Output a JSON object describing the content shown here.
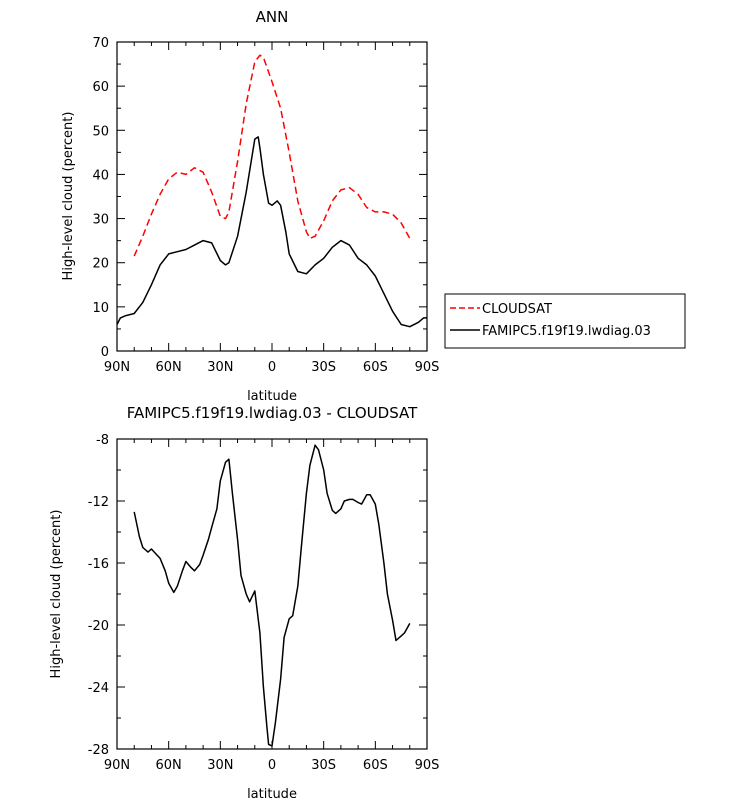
{
  "chart_data": [
    {
      "type": "line",
      "title": "ANN",
      "xlabel": "latitude",
      "ylabel": "High-level cloud (percent)",
      "xlim": [
        90,
        -90
      ],
      "ylim": [
        0,
        70
      ],
      "x_ticks": [
        90,
        60,
        30,
        0,
        -30,
        -60,
        -90
      ],
      "x_tick_labels": [
        "90N",
        "60N",
        "30N",
        "0",
        "30S",
        "60S",
        "90S"
      ],
      "y_ticks": [
        0,
        10,
        20,
        30,
        40,
        50,
        60,
        70
      ],
      "y_tick_labels": [
        "0",
        "10",
        "20",
        "30",
        "40",
        "50",
        "60",
        "70"
      ],
      "grid": false,
      "legend_position": "right",
      "series": [
        {
          "name": "CLOUDSAT",
          "color": "#ff0000",
          "dash": "dashed",
          "x": [
            80,
            75,
            70,
            65,
            60,
            55,
            50,
            45,
            40,
            35,
            30,
            27,
            25,
            20,
            15,
            10,
            7,
            5,
            0,
            -5,
            -10,
            -15,
            -20,
            -22,
            -25,
            -30,
            -35,
            -40,
            -45,
            -50,
            -55,
            -60,
            -65,
            -70,
            -75,
            -80
          ],
          "y": [
            21.5,
            26,
            31,
            35.5,
            39,
            40.5,
            40,
            41.5,
            40.5,
            36,
            30.5,
            30,
            31.5,
            43,
            56,
            65.5,
            67,
            66.5,
            61,
            55,
            45,
            34,
            27,
            25.5,
            26,
            29.5,
            34,
            36.5,
            37,
            35.5,
            32.5,
            31.5,
            31.5,
            31,
            29,
            25.5
          ]
        },
        {
          "name": "FAMIPC5.f19f19.lwdiag.03",
          "color": "#000000",
          "dash": "solid",
          "x": [
            90,
            88,
            85,
            80,
            75,
            70,
            65,
            60,
            55,
            50,
            45,
            40,
            35,
            30,
            27,
            25,
            20,
            15,
            10,
            8,
            7,
            5,
            2,
            0,
            -3,
            -5,
            -8,
            -10,
            -15,
            -20,
            -25,
            -30,
            -35,
            -40,
            -45,
            -50,
            -55,
            -60,
            -65,
            -70,
            -75,
            -80,
            -85,
            -88,
            -90
          ],
          "y": [
            6,
            7.5,
            8,
            8.5,
            11,
            15,
            19.5,
            22,
            22.5,
            23,
            24,
            25,
            24.5,
            20.5,
            19.5,
            20,
            26,
            36,
            48,
            48.5,
            46,
            40,
            33.5,
            33,
            34,
            33,
            27,
            22,
            18,
            17.5,
            19.5,
            21,
            23.5,
            25,
            24,
            21,
            19.5,
            17,
            13,
            9,
            6,
            5.5,
            6.5,
            7.5,
            7.5
          ]
        }
      ]
    },
    {
      "type": "line",
      "title": "FAMIPC5.f19f19.lwdiag.03 - CLOUDSAT",
      "xlabel": "latitude",
      "ylabel": "High-level cloud (percent)",
      "xlim": [
        90,
        -90
      ],
      "ylim": [
        -28,
        -8
      ],
      "x_ticks": [
        90,
        60,
        30,
        0,
        -30,
        -60,
        -90
      ],
      "x_tick_labels": [
        "90N",
        "60N",
        "30N",
        "0",
        "30S",
        "60S",
        "90S"
      ],
      "y_ticks": [
        -28,
        -24,
        -20,
        -16,
        -12,
        -8
      ],
      "y_tick_labels": [
        "-28",
        "-24",
        "-20",
        "-16",
        "-12",
        "-8"
      ],
      "grid": false,
      "series": [
        {
          "color": "#000000",
          "dash": "solid",
          "x": [
            80,
            77,
            75,
            72,
            70,
            65,
            62,
            60,
            57,
            55,
            52,
            50,
            47,
            45,
            42,
            40,
            37,
            35,
            32,
            30,
            27,
            25,
            23,
            20,
            18,
            15,
            13,
            10,
            7,
            5,
            3,
            2,
            0,
            -2,
            -5,
            -7,
            -10,
            -12,
            -15,
            -17,
            -20,
            -22,
            -25,
            -27,
            -30,
            -32,
            -35,
            -37,
            -40,
            -42,
            -45,
            -47,
            -50,
            -52,
            -55,
            -57,
            -60,
            -62,
            -65,
            -67,
            -70,
            -72,
            -75,
            -77,
            -80
          ],
          "y": [
            -12.7,
            -14.3,
            -15,
            -15.3,
            -15.1,
            -15.7,
            -16.5,
            -17.3,
            -17.9,
            -17.5,
            -16.5,
            -15.9,
            -16.3,
            -16.5,
            -16.1,
            -15.5,
            -14.5,
            -13.7,
            -12.5,
            -10.7,
            -9.5,
            -9.3,
            -11.5,
            -14.5,
            -16.8,
            -18,
            -18.5,
            -17.8,
            -20.5,
            -24,
            -26.5,
            -27.7,
            -27.8,
            -26.3,
            -23.5,
            -20.8,
            -19.6,
            -19.4,
            -17.5,
            -15,
            -11.5,
            -9.7,
            -8.4,
            -8.7,
            -10,
            -11.5,
            -12.6,
            -12.8,
            -12.5,
            -12,
            -11.9,
            -11.9,
            -12.1,
            -12.2,
            -11.6,
            -11.6,
            -12.2,
            -13.5,
            -16,
            -18,
            -19.7,
            -21,
            -20.7,
            -20.5,
            -19.9
          ]
        }
      ]
    }
  ]
}
